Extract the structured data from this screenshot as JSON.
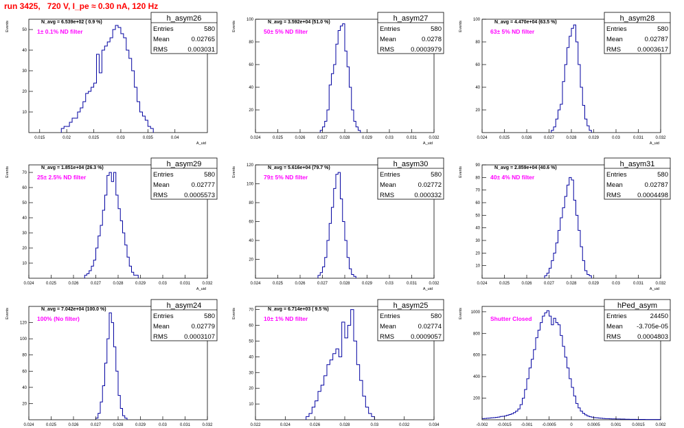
{
  "title": "run 3425,   720 V, I_pe ≈ 0.30 nA, 120 Hz",
  "stat_labels": {
    "entries": "Entries",
    "mean": "Mean",
    "rms": "RMS"
  },
  "colors": {
    "histogram": "#0000a0",
    "annotation": "#ff00ff",
    "title": "#ff0000"
  },
  "chart_data": [
    {
      "type": "bar",
      "name": "h_asym26",
      "nd_label": "1± 0.1% ND filter",
      "navg_label": "N_avg = 6.539e+02 ( 0.9 %)",
      "stats": {
        "entries": "580",
        "mean": "0.02765",
        "rms": "0.003031"
      },
      "xlim": [
        0.013,
        0.046
      ],
      "ylim": [
        0,
        55
      ],
      "xticks": [
        0.015,
        0.02,
        0.025,
        0.03,
        0.035,
        0.04
      ],
      "yticks": [
        10,
        20,
        30,
        40,
        50
      ],
      "xlabel": "A_uid",
      "ylabel": "Events",
      "bins": {
        "start": 0.019,
        "width": 0.0005,
        "values": [
          2,
          3,
          3,
          5,
          7,
          7,
          10,
          12,
          15,
          19,
          20,
          22,
          24,
          38,
          29,
          40,
          42,
          44,
          46,
          50,
          52,
          51,
          48,
          46,
          40,
          36,
          30,
          22,
          15,
          10,
          8,
          6,
          3,
          2
        ]
      }
    },
    {
      "type": "bar",
      "name": "h_asym27",
      "nd_label": "50± 5% ND filter",
      "navg_label": "N_avg = 3.592e+04 (51.0 %)",
      "stats": {
        "entries": "580",
        "mean": "0.0278",
        "rms": "0.0003979"
      },
      "xlim": [
        0.024,
        0.032
      ],
      "ylim": [
        0,
        100
      ],
      "xticks": [
        0.024,
        0.025,
        0.026,
        0.027,
        0.028,
        0.029,
        0.03,
        0.031,
        0.032
      ],
      "yticks": [
        20,
        40,
        60,
        80,
        100
      ],
      "xlabel": "A_uid",
      "ylabel": "Events",
      "bins": {
        "start": 0.0269,
        "width": 0.0001,
        "values": [
          2,
          5,
          10,
          20,
          42,
          52,
          60,
          78,
          90,
          94,
          96,
          72,
          58,
          40,
          20,
          10,
          5,
          2
        ]
      }
    },
    {
      "type": "bar",
      "name": "h_asym28",
      "nd_label": "63± 5% ND filter",
      "navg_label": "N_avg = 4.470e+04 (63.5 %)",
      "stats": {
        "entries": "580",
        "mean": "0.02787",
        "rms": "0.0003617"
      },
      "xlim": [
        0.024,
        0.032
      ],
      "ylim": [
        0,
        100
      ],
      "xticks": [
        0.024,
        0.025,
        0.026,
        0.027,
        0.028,
        0.029,
        0.03,
        0.031,
        0.032
      ],
      "yticks": [
        20,
        40,
        60,
        80,
        100
      ],
      "xlabel": "A_uid",
      "ylabel": "Events",
      "bins": {
        "start": 0.0271,
        "width": 0.0001,
        "values": [
          2,
          5,
          12,
          20,
          25,
          45,
          60,
          75,
          85,
          92,
          95,
          80,
          60,
          40,
          24,
          12,
          6,
          2
        ]
      }
    },
    {
      "type": "bar",
      "name": "h_asym29",
      "nd_label": "25± 2.5% ND filter",
      "navg_label": "N_avg = 1.851e+04 (26.3 %)",
      "stats": {
        "entries": "580",
        "mean": "0.02777",
        "rms": "0.0005573"
      },
      "xlim": [
        0.024,
        0.032
      ],
      "ylim": [
        0,
        75
      ],
      "xticks": [
        0.024,
        0.025,
        0.026,
        0.027,
        0.028,
        0.029,
        0.03,
        0.031,
        0.032
      ],
      "yticks": [
        10,
        20,
        30,
        40,
        50,
        60,
        70
      ],
      "xlabel": "A_uid",
      "ylabel": "Events",
      "bins": {
        "start": 0.0265,
        "width": 0.0001,
        "values": [
          2,
          3,
          5,
          8,
          12,
          20,
          28,
          35,
          45,
          55,
          68,
          70,
          64,
          70,
          55,
          46,
          38,
          30,
          22,
          14,
          8,
          4,
          2,
          2
        ]
      }
    },
    {
      "type": "bar",
      "name": "h_asym30",
      "nd_label": "79± 5% ND filter",
      "navg_label": "N_avg = 5.616e+04 (79.7 %)",
      "stats": {
        "entries": "580",
        "mean": "0.02772",
        "rms": "0.000332"
      },
      "xlim": [
        0.024,
        0.032
      ],
      "ylim": [
        0,
        120
      ],
      "xticks": [
        0.024,
        0.025,
        0.026,
        0.027,
        0.028,
        0.029,
        0.03,
        0.031,
        0.032
      ],
      "yticks": [
        20,
        40,
        60,
        80,
        100,
        120
      ],
      "xlabel": "A_uid",
      "ylabel": "Events",
      "bins": {
        "start": 0.0268,
        "width": 0.0001,
        "values": [
          3,
          6,
          12,
          22,
          40,
          58,
          75,
          95,
          110,
          112,
          84,
          60,
          40,
          22,
          10,
          4,
          2
        ]
      }
    },
    {
      "type": "bar",
      "name": "h_asym31",
      "nd_label": "40± 4% ND filter",
      "navg_label": "N_avg = 2.859e+04 (40.6 %)",
      "stats": {
        "entries": "580",
        "mean": "0.02787",
        "rms": "0.0004498"
      },
      "xlim": [
        0.024,
        0.032
      ],
      "ylim": [
        0,
        90
      ],
      "xticks": [
        0.024,
        0.025,
        0.026,
        0.027,
        0.028,
        0.029,
        0.03,
        0.031,
        0.032
      ],
      "yticks": [
        10,
        20,
        30,
        40,
        50,
        60,
        70,
        80,
        90
      ],
      "xlabel": "A_uid",
      "ylabel": "Events",
      "bins": {
        "start": 0.0268,
        "width": 0.0001,
        "values": [
          2,
          4,
          8,
          14,
          20,
          28,
          38,
          48,
          56,
          65,
          74,
          80,
          78,
          62,
          50,
          38,
          25,
          14,
          6,
          3,
          2
        ]
      }
    },
    {
      "type": "bar",
      "name": "h_asym24",
      "nd_label": "100% (No filter)",
      "navg_label": "N_avg = 7.042e+04 (100.0 %)",
      "stats": {
        "entries": "580",
        "mean": "0.02779",
        "rms": "0.0003107"
      },
      "xlim": [
        0.024,
        0.032
      ],
      "ylim": [
        0,
        140
      ],
      "xticks": [
        0.024,
        0.025,
        0.026,
        0.027,
        0.028,
        0.029,
        0.03,
        0.031,
        0.032
      ],
      "yticks": [
        20,
        40,
        60,
        80,
        100,
        120
      ],
      "xlabel": "A_uid",
      "ylabel": "Events",
      "bins": {
        "start": 0.027,
        "width": 0.0001,
        "values": [
          2,
          8,
          22,
          42,
          70,
          100,
          132,
          120,
          90,
          60,
          30,
          14,
          5,
          2
        ]
      }
    },
    {
      "type": "bar",
      "name": "h_asym25",
      "nd_label": "10± 1% ND filter",
      "navg_label": "N_avg = 6.714e+03 ( 9.5 %)",
      "stats": {
        "entries": "580",
        "mean": "0.02774",
        "rms": "0.0009057"
      },
      "xlim": [
        0.022,
        0.034
      ],
      "ylim": [
        0,
        72
      ],
      "xticks": [
        0.022,
        0.024,
        0.026,
        0.028,
        0.03,
        0.032,
        0.034
      ],
      "yticks": [
        10,
        20,
        30,
        40,
        50,
        60,
        70
      ],
      "xlabel": "A_uid",
      "ylabel": "Events",
      "bins": {
        "start": 0.0254,
        "width": 0.0002,
        "values": [
          2,
          4,
          8,
          12,
          18,
          22,
          28,
          35,
          38,
          42,
          45,
          40,
          62,
          52,
          60,
          70,
          50,
          35,
          25,
          15,
          8,
          4,
          2
        ]
      }
    },
    {
      "type": "bar",
      "name": "hPed_asym",
      "nd_label": "Shutter Closed",
      "navg_label": "",
      "stats": {
        "entries": "24450",
        "mean": "-3.705e-05",
        "rms": "0.0004803"
      },
      "xlim": [
        -0.002,
        0.002
      ],
      "ylim": [
        0,
        1050
      ],
      "xticks": [
        -0.002,
        -0.0015,
        -0.001,
        -0.0005,
        0,
        0.0005,
        0.001,
        0.0015,
        0.002
      ],
      "yticks": [
        200,
        400,
        600,
        800,
        1000
      ],
      "xlabel": "A_uid",
      "ylabel": "Events",
      "bins": {
        "start": -0.002,
        "width": 5e-05,
        "values": [
          10,
          12,
          14,
          16,
          18,
          20,
          22,
          25,
          30,
          32,
          36,
          42,
          48,
          56,
          65,
          80,
          100,
          140,
          200,
          280,
          380,
          480,
          560,
          650,
          760,
          830,
          900,
          960,
          990,
          1010,
          960,
          880,
          940,
          900,
          880,
          780,
          680,
          580,
          480,
          380,
          300,
          220,
          150,
          110,
          80,
          60,
          45,
          35,
          28,
          24,
          20,
          18,
          16,
          14,
          12,
          10,
          10,
          9,
          8,
          8,
          7,
          7,
          6,
          6,
          5,
          5,
          4,
          4,
          4,
          3,
          3,
          3,
          3,
          2,
          2,
          2,
          2,
          2,
          2,
          2
        ]
      }
    }
  ]
}
